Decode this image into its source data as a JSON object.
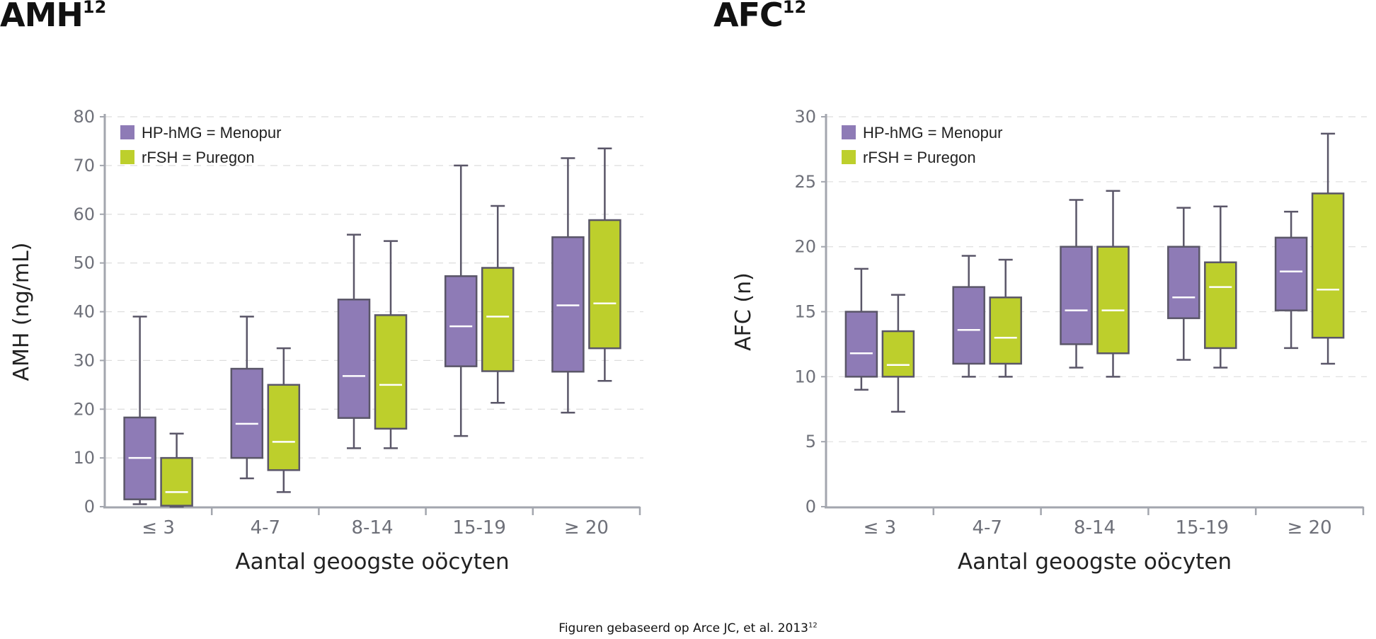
{
  "colors": {
    "menopur": "#8e7bb6",
    "puregon": "#bdcf2c",
    "box_stroke": "#5a5668",
    "median": "#ffffff",
    "axis": "#a3a6ae",
    "grid": "#dddddd",
    "tick_label": "#6e7079",
    "text": "#222222"
  },
  "footnote": {
    "text": "Figuren gebaseerd op Arce JC, et al. 2013",
    "sup": "12"
  },
  "chart_data": [
    {
      "type": "box",
      "title": "AMH",
      "title_sup": "12",
      "xlabel": "Aantal geoogste oöcyten",
      "ylabel": "AMH (ng/mL)",
      "ylim": [
        0,
        80
      ],
      "yticks": [
        0,
        10,
        20,
        30,
        40,
        50,
        60,
        70,
        80
      ],
      "grid": true,
      "legend_position": "top-left",
      "categories": [
        "≤ 3",
        "4-7",
        "8-14",
        "15-19",
        "≥ 20"
      ],
      "series": [
        {
          "name": "HP-hMG = Menopur",
          "color": "#8e7bb6",
          "boxes": [
            {
              "min": 0.5,
              "q1": 1.5,
              "median": 10,
              "q3": 18.3,
              "max": 39
            },
            {
              "min": 5.8,
              "q1": 10,
              "median": 17,
              "q3": 28.3,
              "max": 39
            },
            {
              "min": 12,
              "q1": 18.2,
              "median": 26.8,
              "q3": 42.5,
              "max": 55.8
            },
            {
              "min": 14.5,
              "q1": 28.8,
              "median": 37,
              "q3": 47.3,
              "max": 70
            },
            {
              "min": 19.3,
              "q1": 27.7,
              "median": 41.3,
              "q3": 55.3,
              "max": 71.5
            }
          ]
        },
        {
          "name": "rFSH = Puregon",
          "color": "#bdcf2c",
          "boxes": [
            {
              "min": 0,
              "q1": 0.2,
              "median": 3,
              "q3": 10,
              "max": 15
            },
            {
              "min": 3,
              "q1": 7.5,
              "median": 13.3,
              "q3": 25,
              "max": 32.5
            },
            {
              "min": 12,
              "q1": 16,
              "median": 25,
              "q3": 39.3,
              "max": 54.5
            },
            {
              "min": 21.3,
              "q1": 27.8,
              "median": 39,
              "q3": 49,
              "max": 61.7
            },
            {
              "min": 25.8,
              "q1": 32.5,
              "median": 41.7,
              "q3": 58.8,
              "max": 73.5
            }
          ]
        }
      ]
    },
    {
      "type": "box",
      "title": "AFC",
      "title_sup": "12",
      "xlabel": "Aantal geoogste oöcyten",
      "ylabel": "AFC (n)",
      "ylim": [
        0,
        30
      ],
      "yticks": [
        0,
        5,
        10,
        15,
        20,
        25,
        30
      ],
      "grid": true,
      "legend_position": "top-left",
      "categories": [
        "≤ 3",
        "4-7",
        "8-14",
        "15-19",
        "≥ 20"
      ],
      "series": [
        {
          "name": "HP-hMG = Menopur",
          "color": "#8e7bb6",
          "boxes": [
            {
              "min": 9,
              "q1": 10,
              "median": 11.8,
              "q3": 15,
              "max": 18.3
            },
            {
              "min": 10,
              "q1": 11,
              "median": 13.6,
              "q3": 16.9,
              "max": 19.3
            },
            {
              "min": 10.7,
              "q1": 12.5,
              "median": 15.1,
              "q3": 20,
              "max": 23.6
            },
            {
              "min": 11.3,
              "q1": 14.5,
              "median": 16.1,
              "q3": 20,
              "max": 23
            },
            {
              "min": 12.2,
              "q1": 15.1,
              "median": 18.1,
              "q3": 20.7,
              "max": 22.7
            }
          ]
        },
        {
          "name": "rFSH = Puregon",
          "color": "#bdcf2c",
          "boxes": [
            {
              "min": 7.3,
              "q1": 10,
              "median": 10.9,
              "q3": 13.5,
              "max": 16.3
            },
            {
              "min": 10,
              "q1": 11,
              "median": 13,
              "q3": 16.1,
              "max": 19
            },
            {
              "min": 10,
              "q1": 11.8,
              "median": 15.1,
              "q3": 20,
              "max": 24.3
            },
            {
              "min": 10.7,
              "q1": 12.2,
              "median": 16.9,
              "q3": 18.8,
              "max": 23.1
            },
            {
              "min": 11,
              "q1": 13,
              "median": 16.7,
              "q3": 24.1,
              "max": 28.7
            }
          ]
        }
      ]
    }
  ]
}
